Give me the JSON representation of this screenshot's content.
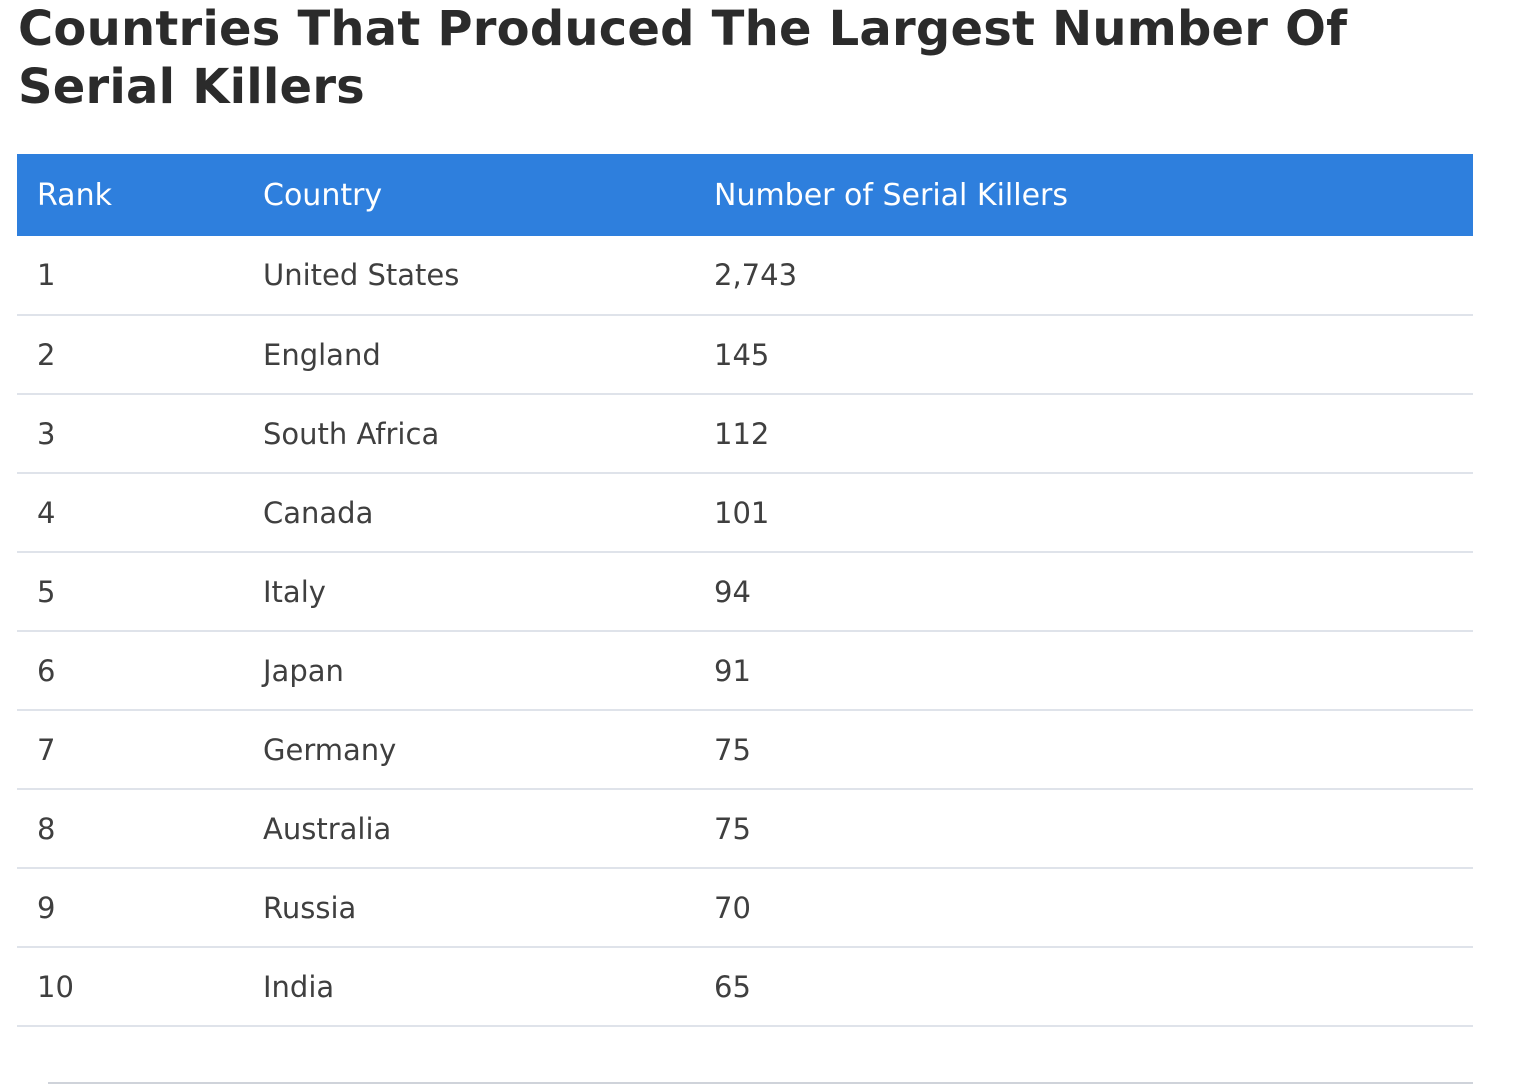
{
  "chart_data": {
    "type": "table",
    "title": "Countries That Produced The Largest Number Of Serial Killers",
    "columns": [
      "Rank",
      "Country",
      "Number of Serial Killers"
    ],
    "rows": [
      {
        "rank": "1",
        "country": "United States",
        "count": "2,743"
      },
      {
        "rank": "2",
        "country": "England",
        "count": "145"
      },
      {
        "rank": "3",
        "country": "South Africa",
        "count": "112"
      },
      {
        "rank": "4",
        "country": "Canada",
        "count": "101"
      },
      {
        "rank": "5",
        "country": "Italy",
        "count": "94"
      },
      {
        "rank": "6",
        "country": "Japan",
        "count": "91"
      },
      {
        "rank": "7",
        "country": "Germany",
        "count": "75"
      },
      {
        "rank": "8",
        "country": "Australia",
        "count": "75"
      },
      {
        "rank": "9",
        "country": "Russia",
        "count": "70"
      },
      {
        "rank": "10",
        "country": "India",
        "count": "65"
      }
    ],
    "values": [
      2743,
      145,
      112,
      101,
      94,
      91,
      75,
      75,
      70,
      65
    ]
  },
  "colors": {
    "header_bg": "#2e7fdd",
    "header_text": "#ffffff",
    "row_divider": "#dfe3ea",
    "title_text": "#2b2b2b"
  }
}
